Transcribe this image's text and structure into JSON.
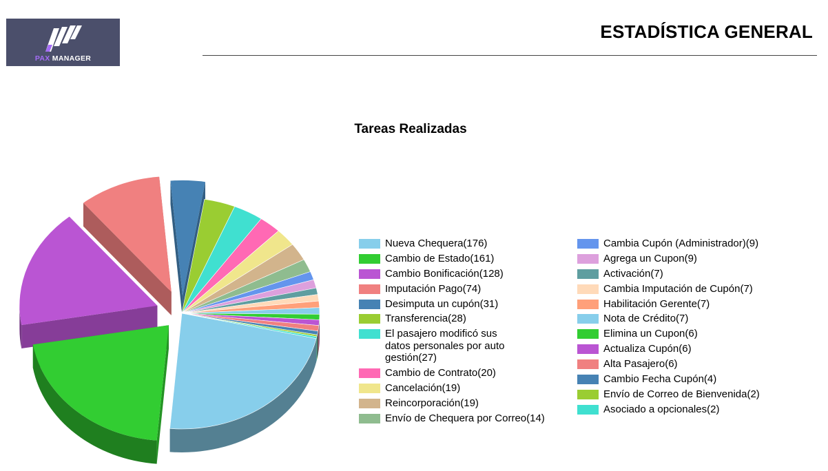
{
  "header": {
    "logo_text_a": "PAX",
    "logo_text_b": "MANAGER",
    "title": "ESTADÍSTICA GENERAL"
  },
  "chart_data": {
    "type": "pie",
    "title": "Tareas Realizadas",
    "legend_position": "right",
    "slices": [
      {
        "label": "Nueva Chequera(176)",
        "name": "Nueva Chequera",
        "value": 176,
        "color": "#87ceeb",
        "explode": 0
      },
      {
        "label": "Cambio de Estado(161)",
        "name": "Cambio de Estado",
        "value": 161,
        "color": "#32cd32",
        "explode": 28
      },
      {
        "label": "Cambio Bonificación(128)",
        "name": "Cambio Bonificación",
        "value": 128,
        "color": "#ba55d3",
        "explode": 38
      },
      {
        "label": "Imputación Pago(74)",
        "name": "Imputación Pago",
        "value": 74,
        "color": "#f08080",
        "explode": 40
      },
      {
        "label": "Desimputa un cupón(31)",
        "name": "Desimputa un cupón",
        "value": 31,
        "color": "#4682b4",
        "explode": 30
      },
      {
        "label": "Transferencia(28)",
        "name": "Transferencia",
        "value": 28,
        "color": "#9acd32",
        "explode": 0
      },
      {
        "label": "El pasajero modificó sus\ndatos personales por auto\ngestión(27)",
        "name": "El pasajero modificó sus datos personales por auto gestión",
        "value": 27,
        "color": "#40e0d0",
        "explode": 0
      },
      {
        "label": "Cambio de Contrato(20)",
        "name": "Cambio de Contrato",
        "value": 20,
        "color": "#ff69b4",
        "explode": 0
      },
      {
        "label": "Cancelación(19)",
        "name": "Cancelación",
        "value": 19,
        "color": "#f0e68c",
        "explode": 0
      },
      {
        "label": "Reincorporación(19)",
        "name": "Reincorporación",
        "value": 19,
        "color": "#d2b48c",
        "explode": 0
      },
      {
        "label": "Envío de Chequera por Correo(14)",
        "name": "Envío de Chequera por Correo",
        "value": 14,
        "color": "#8fbc8f",
        "explode": 0
      },
      {
        "label": "Cambia Cupón (Administrador)(9)",
        "name": "Cambia Cupón (Administrador)",
        "value": 9,
        "color": "#6495ed",
        "explode": 0
      },
      {
        "label": "Agrega un Cupon(9)",
        "name": "Agrega un Cupon",
        "value": 9,
        "color": "#dda0dd",
        "explode": 0
      },
      {
        "label": "Activación(7)",
        "name": "Activación",
        "value": 7,
        "color": "#5f9ea0",
        "explode": 0
      },
      {
        "label": "Cambia Imputación de Cupón(7)",
        "name": "Cambia Imputación de Cupón",
        "value": 7,
        "color": "#ffdab9",
        "explode": 0
      },
      {
        "label": "Habilitación Gerente(7)",
        "name": "Habilitación Gerente",
        "value": 7,
        "color": "#ffa07a",
        "explode": 0
      },
      {
        "label": "Nota de Crédito(7)",
        "name": "Nota de Crédito",
        "value": 7,
        "color": "#87ceeb",
        "explode": 0
      },
      {
        "label": "Elimina un Cupon(6)",
        "name": "Elimina un Cupon",
        "value": 6,
        "color": "#32cd32",
        "explode": 0
      },
      {
        "label": "Actualiza Cupón(6)",
        "name": "Actualiza Cupón",
        "value": 6,
        "color": "#ba55d3",
        "explode": 0
      },
      {
        "label": "Alta Pasajero(6)",
        "name": "Alta Pasajero",
        "value": 6,
        "color": "#f08080",
        "explode": 0
      },
      {
        "label": "Cambio Fecha Cupón(4)",
        "name": "Cambio Fecha Cupón",
        "value": 4,
        "color": "#4682b4",
        "explode": 0
      },
      {
        "label": "Envío de Correo de Bienvenida(2)",
        "name": "Envío de Correo de Bienvenida",
        "value": 2,
        "color": "#9acd32",
        "explode": 0
      },
      {
        "label": "Asociado a opcionales(2)",
        "name": "Asociado a opcionales",
        "value": 2,
        "color": "#40e0d0",
        "explode": 0
      }
    ]
  }
}
